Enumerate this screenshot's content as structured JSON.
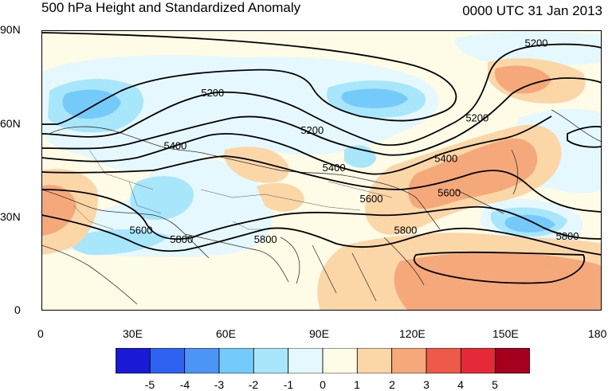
{
  "title": {
    "left": "500 hPa Height and Standardized Anomaly",
    "right": "0000 UTC 31 Jan 2013"
  },
  "map": {
    "lon_range": [
      0,
      180
    ],
    "lat_range": [
      0,
      90
    ],
    "lat_ticks": [
      "90N",
      "60N",
      "30N",
      "0"
    ],
    "lon_ticks": [
      "0",
      "30E",
      "60E",
      "90E",
      "120E",
      "150E",
      "180"
    ],
    "contour_labels": [
      {
        "text": "5200",
        "lon": 55,
        "lat": 70
      },
      {
        "text": "5200",
        "lon": 87,
        "lat": 58
      },
      {
        "text": "5200",
        "lon": 140,
        "lat": 62
      },
      {
        "text": "5200",
        "lon": 159,
        "lat": 86
      },
      {
        "text": "5400",
        "lon": 43,
        "lat": 53
      },
      {
        "text": "5400",
        "lon": 94,
        "lat": 46
      },
      {
        "text": "5400",
        "lon": 130,
        "lat": 49
      },
      {
        "text": "5600",
        "lon": 32,
        "lat": 26
      },
      {
        "text": "5600",
        "lon": 106,
        "lat": 36
      },
      {
        "text": "5600",
        "lon": 131,
        "lat": 38
      },
      {
        "text": "5800",
        "lon": 45,
        "lat": 23
      },
      {
        "text": "5800",
        "lon": 72,
        "lat": 23
      },
      {
        "text": "5800",
        "lon": 117,
        "lat": 26
      },
      {
        "text": "5800",
        "lon": 169,
        "lat": 24
      }
    ]
  },
  "colorbar": {
    "labels": [
      "-5",
      "-4",
      "-3",
      "-2",
      "-1",
      "0",
      "1",
      "2",
      "3",
      "4",
      "5"
    ],
    "colors": [
      "#1a1ad4",
      "#2d63f0",
      "#4a95f5",
      "#74caf8",
      "#a8e6fb",
      "#e4f8fd",
      "#fefbe6",
      "#fbd7a8",
      "#f5a87a",
      "#ed5b48",
      "#e32a36",
      "#a5001e"
    ]
  }
}
